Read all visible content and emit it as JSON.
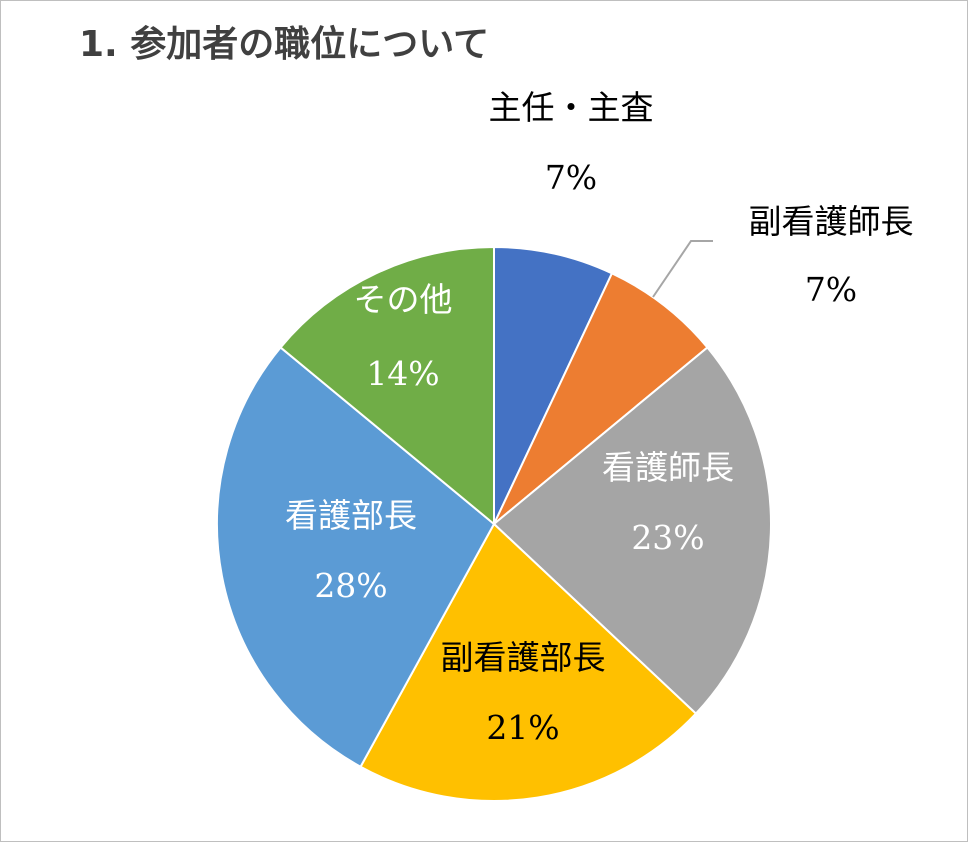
{
  "chart_data": {
    "type": "pie",
    "title": "1. 参加者の職位について",
    "slices": [
      {
        "label": "主任・主査",
        "value": 7,
        "percent_label": "7%",
        "color": "#4472C4",
        "text_color": "#000000"
      },
      {
        "label": "副看護師長",
        "value": 7,
        "percent_label": "7%",
        "color": "#ED7D31",
        "text_color": "#000000"
      },
      {
        "label": "看護師長",
        "value": 23,
        "percent_label": "23%",
        "color": "#A5A5A5",
        "text_color": "#FFFFFF"
      },
      {
        "label": "副看護部長",
        "value": 21,
        "percent_label": "21%",
        "color": "#FFC000",
        "text_color": "#000000"
      },
      {
        "label": "看護部長",
        "value": 28,
        "percent_label": "28%",
        "color": "#5B9BD5",
        "text_color": "#FFFFFF"
      },
      {
        "label": "その他",
        "value": 14,
        "percent_label": "14%",
        "color": "#70AD47",
        "text_color": "#FFFFFF"
      }
    ],
    "start_angle": "12 o'clock",
    "direction": "clockwise",
    "legend": "none"
  }
}
